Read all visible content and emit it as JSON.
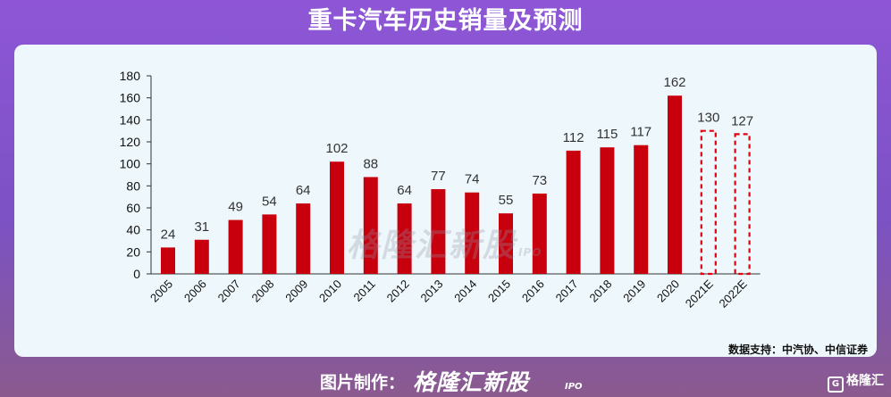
{
  "header": {
    "title": "重卡汽车历史销量及预测"
  },
  "source_note": "数据支持：中汽协、中信证券",
  "watermark": {
    "brand": "格隆汇新股",
    "suffix": "IPO"
  },
  "footer": {
    "label": "图片制作：",
    "brand": "格隆汇新股",
    "suffix": "IPO",
    "corner_logo": "格隆汇"
  },
  "colors": {
    "bar": "#c8000e",
    "forecast_outline": "#e00010"
  },
  "chart_data": {
    "type": "bar",
    "categories": [
      "2005",
      "2006",
      "2007",
      "2008",
      "2009",
      "2010",
      "2011",
      "2012",
      "2013",
      "2014",
      "2015",
      "2016",
      "2017",
      "2018",
      "2019",
      "2020",
      "2021E",
      "2022E"
    ],
    "values": [
      24,
      31,
      49,
      54,
      64,
      102,
      88,
      64,
      77,
      74,
      55,
      73,
      112,
      115,
      117,
      162,
      130,
      127
    ],
    "forecast": [
      false,
      false,
      false,
      false,
      false,
      false,
      false,
      false,
      false,
      false,
      false,
      false,
      false,
      false,
      false,
      false,
      true,
      true
    ],
    "yticks": [
      0,
      20,
      40,
      60,
      80,
      100,
      120,
      140,
      160,
      180
    ],
    "ylim": [
      0,
      180
    ],
    "title": "",
    "xlabel": "",
    "ylabel": "",
    "grid": false
  }
}
